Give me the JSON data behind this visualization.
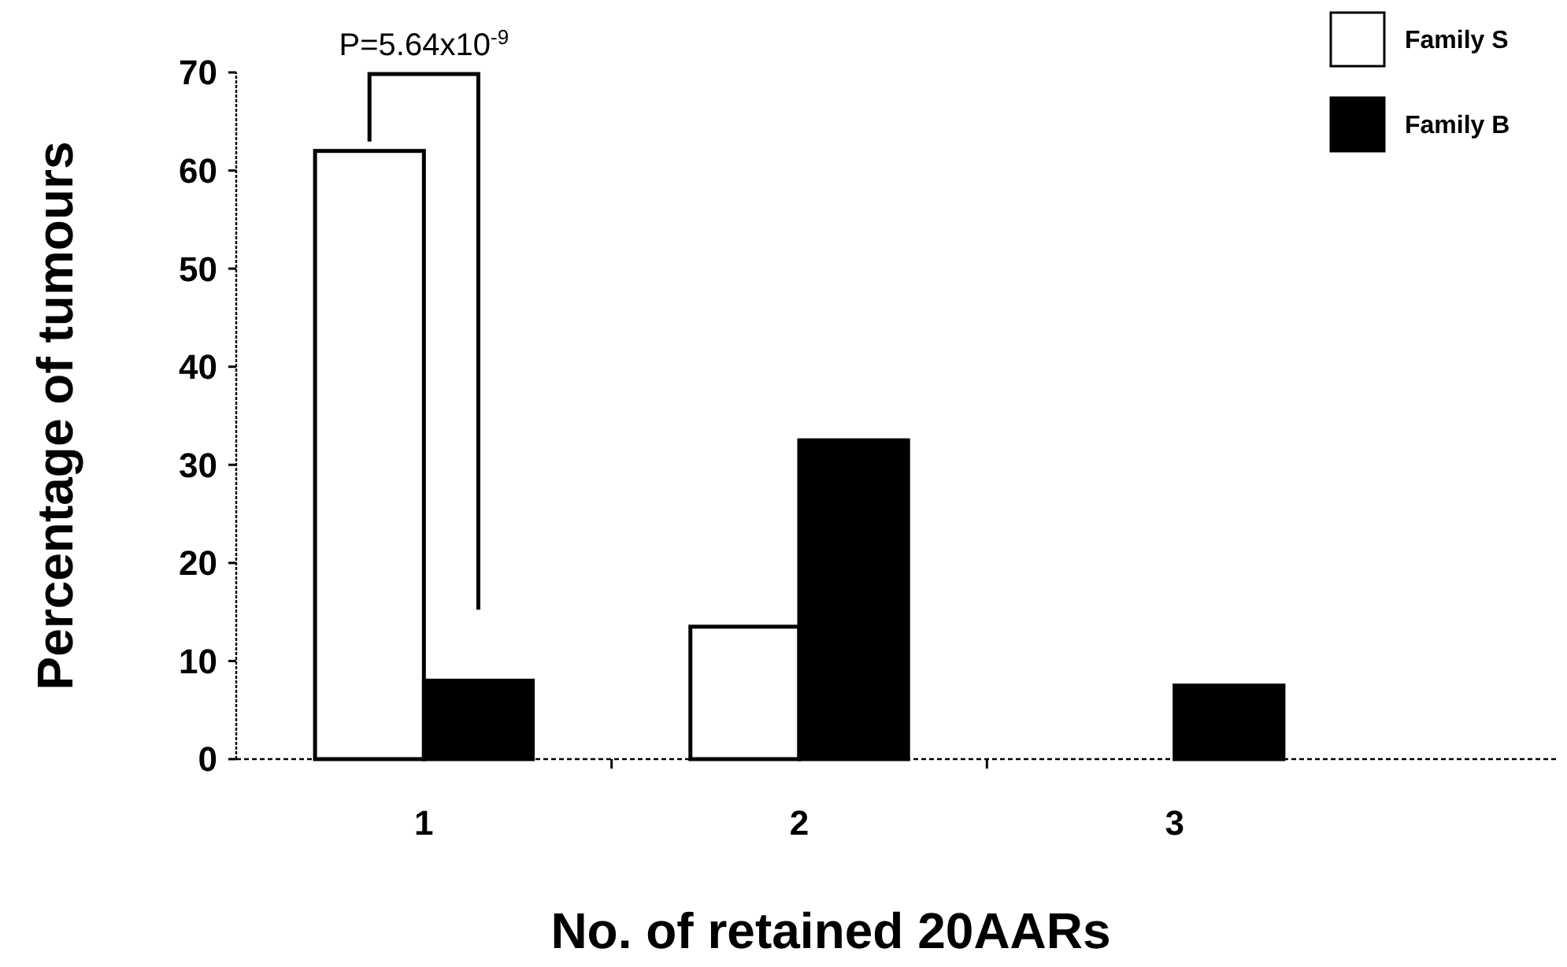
{
  "chart_data": {
    "type": "bar",
    "xlabel": "No. of retained 20AARs",
    "ylabel": "Percentage of tumours",
    "categories": [
      "1",
      "2",
      "3"
    ],
    "series": [
      {
        "name": "Family S",
        "color": "#ffffff",
        "values": [
          62,
          13.5,
          0
        ]
      },
      {
        "name": "Family B",
        "color": "#000000",
        "values": [
          8,
          32.5,
          7.5
        ]
      }
    ],
    "ylim": [
      0,
      70
    ],
    "yticks": [
      0,
      10,
      20,
      30,
      40,
      50,
      60,
      70
    ],
    "legend": "top right",
    "annotations": [
      "P=5.64x10$^{-9}$"
    ]
  }
}
